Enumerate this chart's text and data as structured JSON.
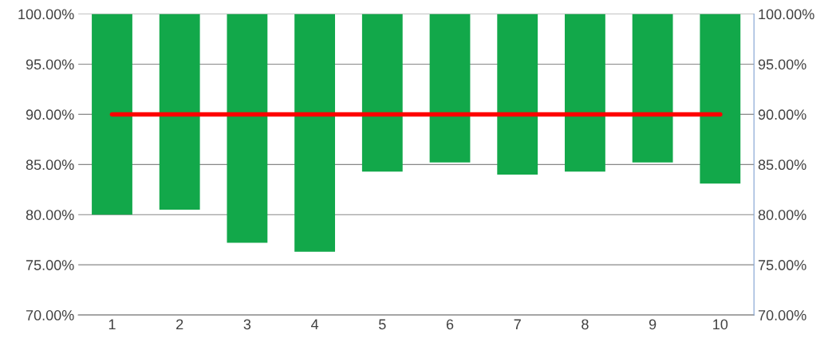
{
  "chart_data": {
    "type": "bar",
    "categories": [
      "1",
      "2",
      "3",
      "4",
      "5",
      "6",
      "7",
      "8",
      "9",
      "10"
    ],
    "series": [
      {
        "color": "#12a84a",
        "base": [
          80.0,
          80.5,
          77.2,
          76.3,
          84.3,
          85.2,
          84.0,
          84.3,
          85.2,
          83.1
        ],
        "values": [
          20.0,
          19.5,
          22.8,
          23.7,
          15.7,
          14.8,
          16.0,
          15.7,
          14.8,
          16.9
        ]
      },
      {
        "type": "line",
        "color": "#ff0000",
        "values": [
          90,
          90,
          90,
          90,
          90,
          90,
          90,
          90,
          90,
          90
        ]
      }
    ],
    "ylim": [
      70,
      100
    ],
    "yticks": [
      {
        "value": 70,
        "label": "70.00%"
      },
      {
        "value": 75,
        "label": "75.00%"
      },
      {
        "value": 80,
        "label": "80.00%"
      },
      {
        "value": 85,
        "label": "85.00%"
      },
      {
        "value": 90,
        "label": "90.00%"
      },
      {
        "value": 95,
        "label": "95.00%"
      },
      {
        "value": 100,
        "label": "100.00%"
      }
    ],
    "y2lim": [
      70,
      100
    ],
    "y2ticks": [
      {
        "value": 70,
        "label": "70.00%"
      },
      {
        "value": 75,
        "label": "75.00%"
      },
      {
        "value": 80,
        "label": "80.00%"
      },
      {
        "value": 85,
        "label": "85.00%"
      },
      {
        "value": 90,
        "label": "90.00%"
      },
      {
        "value": 95,
        "label": "95.00%"
      },
      {
        "value": 100,
        "label": "100.00%"
      }
    ],
    "grid": "y",
    "marker": "none",
    "line_style": "solid"
  }
}
